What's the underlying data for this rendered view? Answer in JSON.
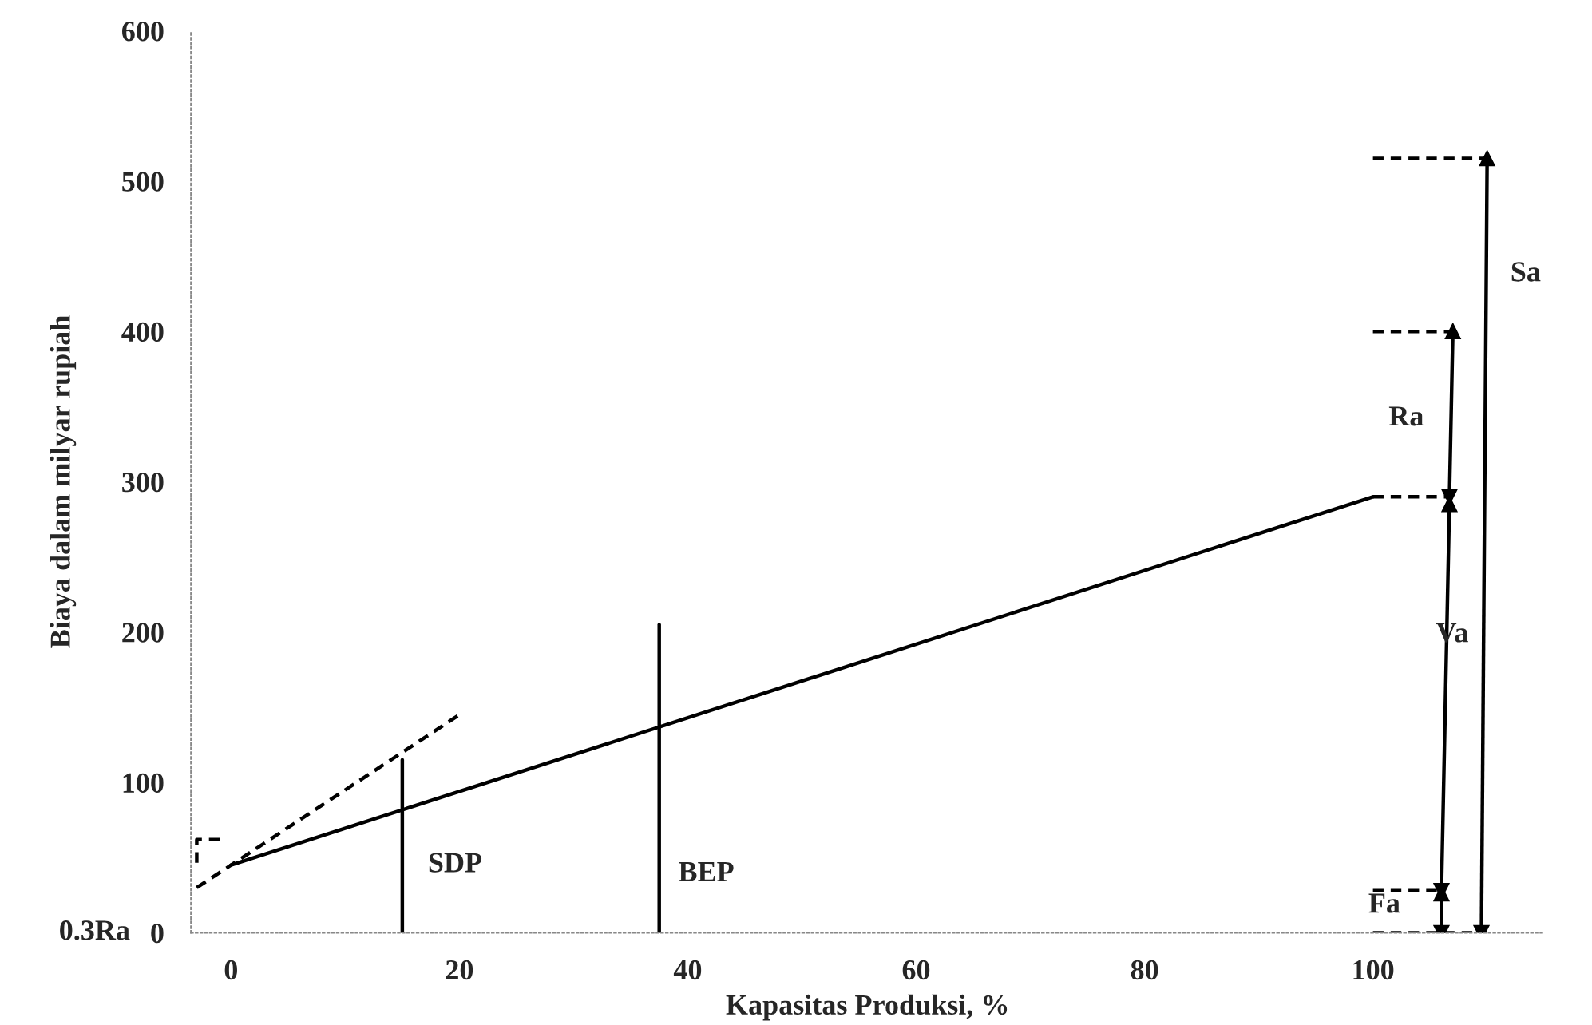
{
  "chart_data": {
    "type": "line",
    "xlabel": "Kapasitas Produksi, %",
    "ylabel": "Biaya dalam milyar rupiah",
    "xlim": [
      -3.5,
      115
    ],
    "xticks": [
      0,
      20,
      40,
      60,
      80,
      100
    ],
    "ylim": [
      0,
      600
    ],
    "yticks": [
      0,
      100,
      200,
      300,
      400,
      500,
      600
    ],
    "grid": false,
    "legend": false,
    "series": [
      {
        "color": "#000000",
        "line_style": "solid",
        "x": [
          0,
          100
        ],
        "values": [
          45,
          290
        ]
      },
      {
        "color": "#000000",
        "line_style": "dashed",
        "x": [
          -3,
          20
        ],
        "values": [
          30,
          145
        ]
      },
      {
        "color": "#000000",
        "line_style": "dashed",
        "x": [
          -1,
          -3,
          -3
        ],
        "values": [
          62,
          62,
          42
        ]
      },
      {
        "color": "#000000",
        "line_style": "solid",
        "x": [
          15,
          15
        ],
        "values": [
          0,
          115
        ]
      },
      {
        "color": "#000000",
        "line_style": "solid",
        "x": [
          37.5,
          37.5
        ],
        "values": [
          0,
          205
        ]
      },
      {
        "color": "#000000",
        "line_style": "dashed",
        "x": [
          100,
          110
        ],
        "values": [
          515,
          515
        ]
      },
      {
        "color": "#000000",
        "line_style": "dashed",
        "x": [
          100,
          107
        ],
        "values": [
          400,
          400
        ]
      },
      {
        "color": "#000000",
        "line_style": "dashed",
        "x": [
          100,
          107
        ],
        "values": [
          290,
          290
        ]
      },
      {
        "color": "#000000",
        "line_style": "dashed",
        "x": [
          100,
          106
        ],
        "values": [
          28,
          28
        ]
      },
      {
        "color": "#000000",
        "line_style": "dashed",
        "x": [
          100,
          110
        ],
        "values": [
          0,
          0
        ]
      },
      {
        "color": "#000000",
        "line_style": "solid",
        "marker": "triangle",
        "x": [
          110,
          109.5
        ],
        "values": [
          515,
          0
        ]
      },
      {
        "color": "#000000",
        "line_style": "solid",
        "marker": "triangle",
        "x": [
          107,
          106.7
        ],
        "values": [
          400,
          290
        ]
      },
      {
        "color": "#000000",
        "line_style": "solid",
        "marker": "triangle",
        "x": [
          106.7,
          106
        ],
        "values": [
          285,
          28
        ]
      },
      {
        "color": "#000000",
        "line_style": "solid",
        "marker": "triangle",
        "x": [
          106,
          106
        ],
        "values": [
          26,
          0
        ]
      }
    ],
    "annotations": [
      "SDP",
      "BEP",
      "Ra",
      "Va",
      "Sa",
      "Fa",
      "0.3Ra"
    ]
  }
}
